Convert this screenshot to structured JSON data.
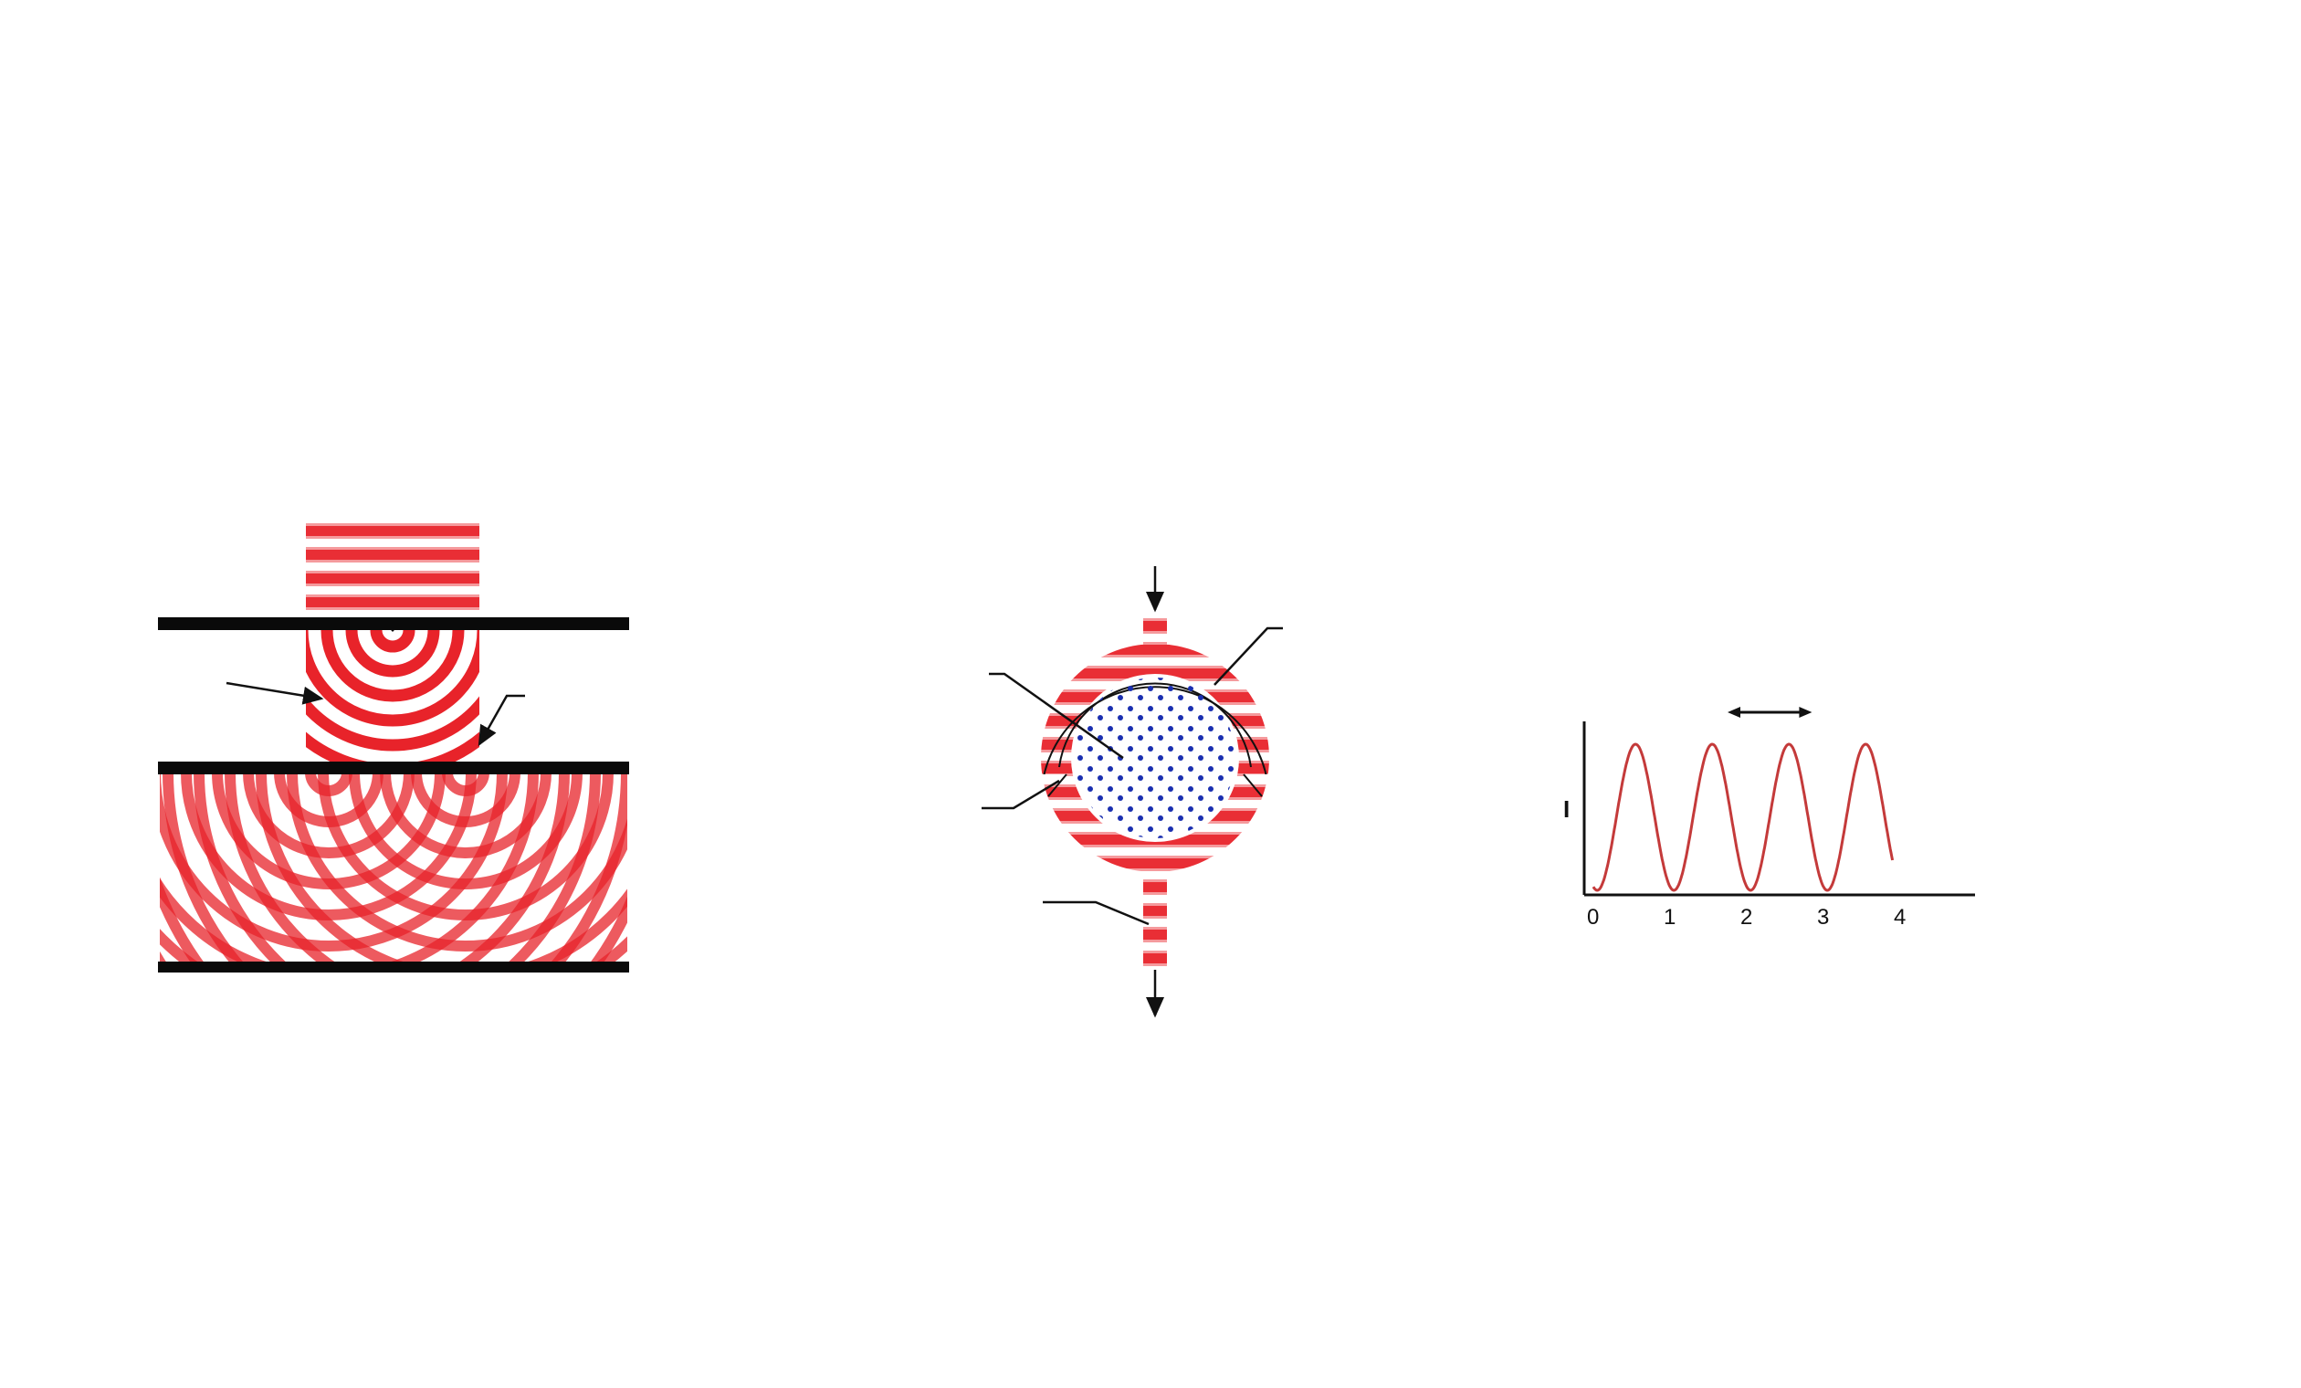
{
  "colors": {
    "wave": "#e8232a",
    "wave_light": "#ffffff",
    "barrier": "#0a0a0a",
    "dots": "#1a2fb0",
    "curve": "#c43a3a",
    "axis": "#111111"
  },
  "double_slit": {
    "icons": [
      "incident-plane-wave",
      "single-slit",
      "double-slit",
      "interference-pattern"
    ]
  },
  "ring_interferometer": {
    "icons": [
      "input-arrow",
      "split-ring",
      "dotted-core",
      "output-arrow"
    ]
  },
  "chart_data": {
    "type": "line",
    "ylabel": "I",
    "xlabel": "",
    "x_ticks": [
      "0",
      "1",
      "2",
      "3",
      "4"
    ],
    "xlim": [
      0,
      5
    ],
    "curve": {
      "form": "cosine",
      "period": 1.0,
      "x_start": 0.0,
      "x_end": 3.9,
      "peaks_x": [
        0.55,
        1.55,
        2.55,
        3.55
      ]
    },
    "period_marker": {
      "from_x": 1.75,
      "to_x": 2.85
    },
    "grid": false
  }
}
